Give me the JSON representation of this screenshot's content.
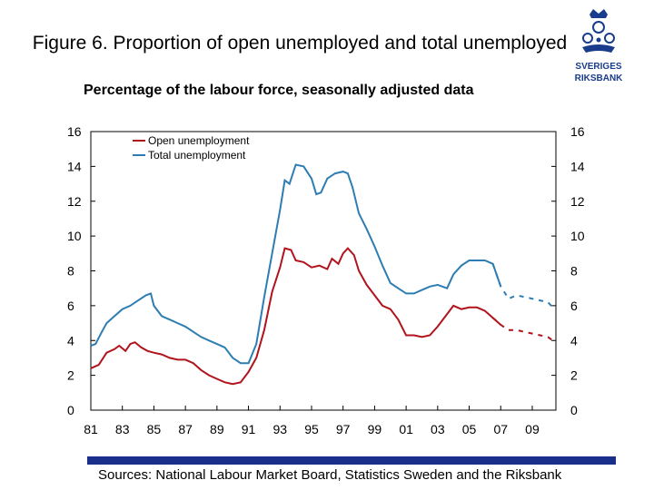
{
  "title": "Figure 6. Proportion of open unemployed and total unemployed",
  "subtitle": "Percentage of the labour force, seasonally adjusted data",
  "sources": "Sources: National Labour Market Board, Statistics Sweden and the Riksbank",
  "logo": {
    "line1": "SVERIGES",
    "line2": "RIKSBANK",
    "color": "#1a3c8c"
  },
  "colors": {
    "open": "#b0141c",
    "total": "#2e7db2",
    "bar": "#1a2f8a"
  },
  "chart_data": {
    "type": "line",
    "xlabel": "",
    "ylabel": "",
    "ylim": [
      0,
      16
    ],
    "xlim": [
      1981,
      2010.5
    ],
    "y_ticks": [
      "0",
      "2",
      "4",
      "6",
      "8",
      "10",
      "12",
      "14",
      "16"
    ],
    "x_ticks": [
      "81",
      "83",
      "85",
      "87",
      "89",
      "91",
      "93",
      "95",
      "97",
      "99",
      "01",
      "03",
      "05",
      "07",
      "09"
    ],
    "grid": false,
    "legend": "top-left",
    "forecast_start": 2007.1,
    "series": [
      {
        "name": "Open unemployment",
        "color": "#b0141c",
        "x": [
          1981,
          1981.5,
          1982,
          1982.5,
          1982.8,
          1983.2,
          1983.5,
          1983.8,
          1984.2,
          1984.6,
          1985,
          1985.5,
          1986,
          1986.5,
          1987,
          1987.5,
          1988,
          1988.5,
          1989,
          1989.5,
          1990,
          1990.5,
          1991,
          1991.5,
          1992,
          1992.5,
          1993,
          1993.3,
          1993.7,
          1994,
          1994.5,
          1995,
          1995.5,
          1996,
          1996.3,
          1996.7,
          1997,
          1997.3,
          1997.7,
          1998,
          1998.5,
          1999,
          1999.5,
          2000,
          2000.5,
          2001,
          2001.5,
          2002,
          2002.5,
          2003,
          2003.5,
          2004,
          2004.5,
          2005,
          2005.5,
          2006,
          2006.5,
          2007,
          2007.5,
          2008,
          2008.5,
          2009,
          2009.5,
          2010,
          2010.3
        ],
        "y": [
          2.4,
          2.6,
          3.3,
          3.5,
          3.7,
          3.4,
          3.8,
          3.9,
          3.6,
          3.4,
          3.3,
          3.2,
          3.0,
          2.9,
          2.9,
          2.7,
          2.3,
          2.0,
          1.8,
          1.6,
          1.5,
          1.6,
          2.2,
          3.0,
          4.6,
          6.8,
          8.2,
          9.3,
          9.2,
          8.6,
          8.5,
          8.2,
          8.3,
          8.1,
          8.7,
          8.4,
          9.0,
          9.3,
          8.9,
          8.0,
          7.2,
          6.6,
          6.0,
          5.8,
          5.2,
          4.3,
          4.3,
          4.2,
          4.3,
          4.8,
          5.4,
          6.0,
          5.8,
          5.9,
          5.9,
          5.7,
          5.3,
          4.9,
          4.6,
          4.6,
          4.5,
          4.4,
          4.3,
          4.2,
          4.0
        ]
      },
      {
        "name": "Total unemployment",
        "color": "#2e7db2",
        "x": [
          1981,
          1981.3,
          1981.7,
          1982,
          1982.5,
          1983,
          1983.5,
          1984,
          1984.5,
          1984.8,
          1985,
          1985.5,
          1986,
          1986.5,
          1987,
          1987.5,
          1988,
          1988.5,
          1989,
          1989.5,
          1990,
          1990.5,
          1991,
          1991.5,
          1992,
          1992.5,
          1993,
          1993.3,
          1993.6,
          1994,
          1994.5,
          1995,
          1995.3,
          1995.6,
          1996,
          1996.5,
          1997,
          1997.3,
          1997.6,
          1998,
          1998.5,
          1999,
          1999.5,
          2000,
          2000.5,
          2001,
          2001.5,
          2002,
          2002.5,
          2003,
          2003.3,
          2003.6,
          2004,
          2004.5,
          2005,
          2005.5,
          2006,
          2006.5,
          2007,
          2007.5,
          2008,
          2008.5,
          2009,
          2009.5,
          2010,
          2010.3
        ],
        "y": [
          3.7,
          3.8,
          4.5,
          5.0,
          5.4,
          5.8,
          6.0,
          6.3,
          6.6,
          6.7,
          6.0,
          5.4,
          5.2,
          5.0,
          4.8,
          4.5,
          4.2,
          4.0,
          3.8,
          3.6,
          3.0,
          2.7,
          2.7,
          3.8,
          6.5,
          9.0,
          11.5,
          13.2,
          13.0,
          14.1,
          14.0,
          13.3,
          12.4,
          12.5,
          13.3,
          13.6,
          13.7,
          13.6,
          12.8,
          11.3,
          10.4,
          9.4,
          8.3,
          7.3,
          7.0,
          6.7,
          6.7,
          6.9,
          7.1,
          7.2,
          7.1,
          7.0,
          7.8,
          8.3,
          8.6,
          8.6,
          8.6,
          8.4,
          7.1,
          6.4,
          6.6,
          6.5,
          6.4,
          6.3,
          6.2,
          5.9
        ]
      }
    ]
  }
}
